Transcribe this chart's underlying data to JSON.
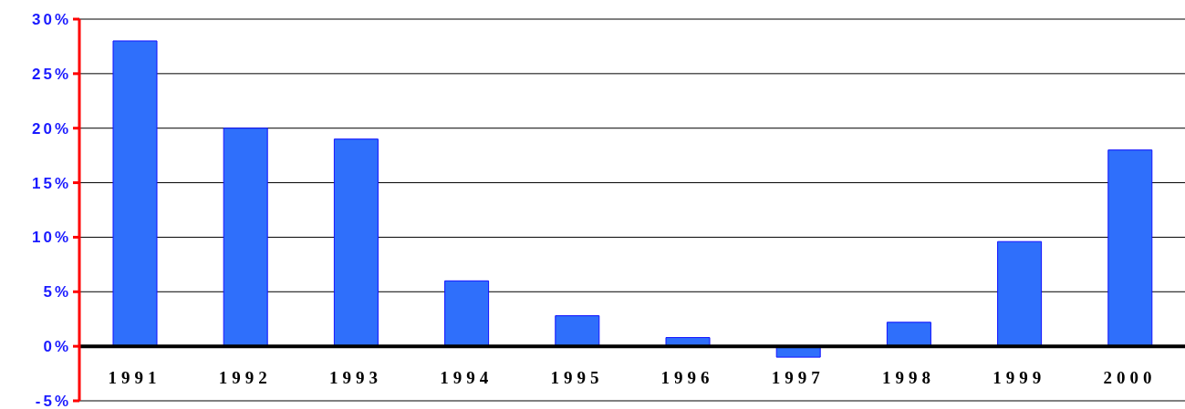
{
  "chart_data": {
    "type": "bar",
    "categories": [
      "1991",
      "1992",
      "1993",
      "1994",
      "1995",
      "1996",
      "1997",
      "1998",
      "1999",
      "2000"
    ],
    "values": [
      28,
      20,
      19,
      6,
      2.8,
      0.8,
      -1,
      2.2,
      9.6,
      18
    ],
    "color": "#2f6ffb",
    "ylim": [
      -5,
      30
    ],
    "yticks": [
      {
        "value": -5,
        "label": "-5%"
      },
      {
        "value": 0,
        "label": "0%"
      },
      {
        "value": 5,
        "label": "5%"
      },
      {
        "value": 10,
        "label": "10%"
      },
      {
        "value": 15,
        "label": "15%"
      },
      {
        "value": 20,
        "label": "20%"
      },
      {
        "value": 25,
        "label": "25%"
      },
      {
        "value": 30,
        "label": "30%"
      }
    ],
    "grid": "y",
    "legend": false
  }
}
